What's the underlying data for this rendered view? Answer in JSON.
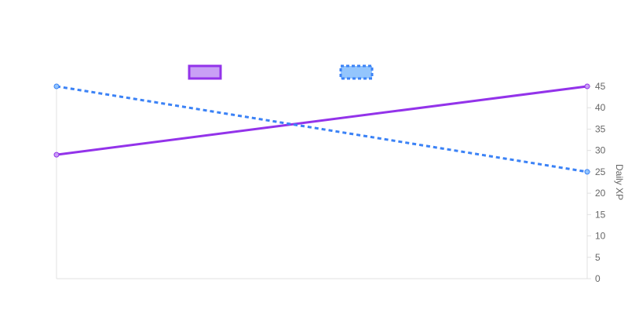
{
  "chart_data": {
    "type": "line",
    "title": "",
    "xlabel": "",
    "ylabel": "Daily XP",
    "x": [
      0,
      1
    ],
    "ylim": [
      0,
      45
    ],
    "yticks": [
      0,
      5,
      10,
      15,
      20,
      25,
      30,
      35,
      40,
      45
    ],
    "y_axis_position": "right",
    "grid": false,
    "legend_position": "top",
    "series": [
      {
        "values": [
          29,
          45
        ],
        "color": "#9333ea",
        "fill": "#c9a0f5",
        "dashed": false
      },
      {
        "values": [
          45,
          25
        ],
        "color": "#3b82f6",
        "fill": "#93c5fd",
        "dashed": true
      }
    ]
  }
}
